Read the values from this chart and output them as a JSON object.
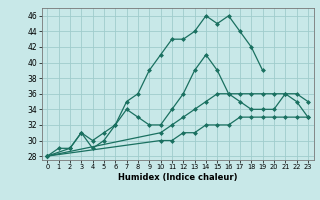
{
  "xlabel": "Humidex (Indice chaleur)",
  "xlim": [
    -0.5,
    23.5
  ],
  "ylim": [
    27.5,
    47.0
  ],
  "xticks": [
    0,
    1,
    2,
    3,
    4,
    5,
    6,
    7,
    8,
    9,
    10,
    11,
    12,
    13,
    14,
    15,
    16,
    17,
    18,
    19,
    20,
    21,
    22,
    23
  ],
  "yticks": [
    28,
    30,
    32,
    34,
    36,
    38,
    40,
    42,
    44,
    46
  ],
  "bg_color": "#c8e8e8",
  "grid_color": "#a0cccc",
  "line_color": "#1a7060",
  "series1_x": [
    0,
    1,
    2,
    3,
    4,
    5,
    6,
    7,
    8,
    9,
    10,
    11,
    12,
    13,
    14,
    15,
    16,
    17,
    18,
    19
  ],
  "series1_y": [
    28,
    29,
    29,
    31,
    30,
    31,
    32,
    35,
    36,
    39,
    41,
    43,
    43,
    44,
    46,
    45,
    46,
    44,
    42,
    39
  ],
  "series2_x": [
    0,
    2,
    3,
    4,
    5,
    6,
    7,
    8,
    9,
    10,
    11,
    12,
    13,
    14,
    15,
    16,
    17,
    18,
    19,
    20,
    21,
    22,
    23
  ],
  "series2_y": [
    28,
    29,
    31,
    29,
    30,
    32,
    34,
    33,
    32,
    32,
    34,
    36,
    39,
    41,
    39,
    36,
    35,
    34,
    34,
    34,
    36,
    36,
    35
  ],
  "series3_x": [
    0,
    10,
    11,
    12,
    13,
    14,
    15,
    16,
    17,
    18,
    19,
    20,
    21,
    22,
    23
  ],
  "series3_y": [
    28,
    31,
    32,
    33,
    34,
    35,
    36,
    36,
    36,
    36,
    36,
    36,
    36,
    35,
    33
  ],
  "series4_x": [
    0,
    10,
    11,
    12,
    13,
    14,
    15,
    16,
    17,
    18,
    19,
    20,
    21,
    22,
    23
  ],
  "series4_y": [
    28,
    30,
    30,
    31,
    31,
    32,
    32,
    32,
    33,
    33,
    33,
    33,
    33,
    33,
    33
  ]
}
